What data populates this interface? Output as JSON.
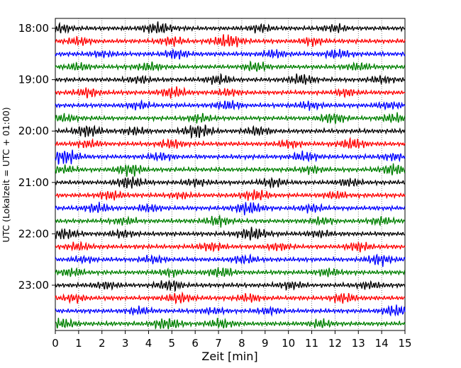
{
  "chart_data": {
    "type": "line",
    "subtype": "seismogram-helicorder",
    "title": "",
    "xlabel": "Zeit  [min]",
    "ylabel": "UTC (Lokalzeit = UTC + 01:00)",
    "xlim": [
      0,
      15
    ],
    "x_ticks": [
      "0",
      "1",
      "2",
      "3",
      "4",
      "5",
      "6",
      "7",
      "8",
      "9",
      "10",
      "11",
      "12",
      "13",
      "14",
      "15"
    ],
    "y_ticks": [
      "18:00",
      "19:00",
      "20:00",
      "21:00",
      "22:00",
      "23:00"
    ],
    "start_time": "18:00",
    "minutes_per_line": 15,
    "line_colors": [
      "#000000",
      "#ff0000",
      "#0000ff",
      "#008000"
    ],
    "grid": "vertical dotted",
    "traces": [
      {
        "start": "18:00",
        "bursts": [
          [
            4.4,
            0.7
          ],
          [
            0.2,
            0.5
          ],
          [
            8.8,
            0.4
          ],
          [
            12.0,
            0.4
          ]
        ]
      },
      {
        "start": "18:15",
        "bursts": [
          [
            7.4,
            0.8
          ],
          [
            5.0,
            0.5
          ],
          [
            11.0,
            0.4
          ],
          [
            1.0,
            0.4
          ]
        ]
      },
      {
        "start": "18:30",
        "bursts": [
          [
            5.2,
            0.5
          ],
          [
            12.1,
            0.5
          ],
          [
            9.4,
            0.4
          ],
          [
            2.0,
            0.3
          ]
        ]
      },
      {
        "start": "18:45",
        "bursts": [
          [
            4.0,
            0.5
          ],
          [
            8.6,
            0.5
          ],
          [
            1.0,
            0.4
          ],
          [
            13.0,
            0.4
          ]
        ]
      },
      {
        "start": "19:00",
        "bursts": [
          [
            10.6,
            0.6
          ],
          [
            7.0,
            0.5
          ],
          [
            3.6,
            0.4
          ],
          [
            14.0,
            0.4
          ]
        ]
      },
      {
        "start": "19:15",
        "bursts": [
          [
            5.0,
            0.6
          ],
          [
            1.4,
            0.5
          ],
          [
            7.4,
            0.4
          ],
          [
            12.5,
            0.4
          ]
        ]
      },
      {
        "start": "19:30",
        "bursts": [
          [
            7.4,
            0.5
          ],
          [
            3.6,
            0.4
          ],
          [
            10.9,
            0.4
          ],
          [
            14.3,
            0.4
          ]
        ]
      },
      {
        "start": "19:45",
        "bursts": [
          [
            11.9,
            0.6
          ],
          [
            14.5,
            0.5
          ],
          [
            0.4,
            0.4
          ],
          [
            6.2,
            0.4
          ]
        ]
      },
      {
        "start": "20:00",
        "bursts": [
          [
            6.1,
            0.8
          ],
          [
            1.4,
            0.7
          ],
          [
            8.7,
            0.5
          ],
          [
            3.4,
            0.4
          ]
        ]
      },
      {
        "start": "20:15",
        "bursts": [
          [
            12.7,
            0.6
          ],
          [
            5.0,
            0.5
          ],
          [
            1.4,
            0.4
          ],
          [
            10.0,
            0.4
          ]
        ]
      },
      {
        "start": "20:30",
        "bursts": [
          [
            0.4,
            0.9
          ],
          [
            10.7,
            0.5
          ],
          [
            4.5,
            0.4
          ],
          [
            14.5,
            0.4
          ]
        ]
      },
      {
        "start": "20:45",
        "bursts": [
          [
            3.2,
            0.7
          ],
          [
            14.5,
            0.6
          ],
          [
            0.4,
            0.4
          ],
          [
            11.0,
            0.4
          ]
        ]
      },
      {
        "start": "21:00",
        "bursts": [
          [
            3.2,
            0.7
          ],
          [
            9.3,
            0.5
          ],
          [
            12.6,
            0.4
          ],
          [
            6.0,
            0.4
          ]
        ]
      },
      {
        "start": "21:15",
        "bursts": [
          [
            8.6,
            0.6
          ],
          [
            2.4,
            0.5
          ],
          [
            12.0,
            0.4
          ],
          [
            5.4,
            0.3
          ]
        ]
      },
      {
        "start": "21:30",
        "bursts": [
          [
            8.3,
            0.7
          ],
          [
            1.8,
            0.5
          ],
          [
            11.0,
            0.4
          ],
          [
            4.0,
            0.4
          ]
        ]
      },
      {
        "start": "21:45",
        "bursts": [
          [
            7.0,
            0.5
          ],
          [
            11.4,
            0.4
          ],
          [
            3.0,
            0.4
          ],
          [
            14.0,
            0.4
          ]
        ]
      },
      {
        "start": "22:00",
        "bursts": [
          [
            8.5,
            0.8
          ],
          [
            0.4,
            0.6
          ],
          [
            2.9,
            0.4
          ],
          [
            11.3,
            0.4
          ]
        ]
      },
      {
        "start": "22:15",
        "bursts": [
          [
            6.7,
            0.5
          ],
          [
            13.0,
            0.5
          ],
          [
            1.0,
            0.4
          ],
          [
            9.6,
            0.4
          ]
        ]
      },
      {
        "start": "22:30",
        "bursts": [
          [
            13.9,
            0.6
          ],
          [
            8.1,
            0.5
          ],
          [
            4.2,
            0.4
          ],
          [
            1.2,
            0.3
          ]
        ]
      },
      {
        "start": "22:45",
        "bursts": [
          [
            7.1,
            0.6
          ],
          [
            0.7,
            0.5
          ],
          [
            11.7,
            0.4
          ],
          [
            4.9,
            0.4
          ]
        ]
      },
      {
        "start": "23:00",
        "bursts": [
          [
            4.9,
            0.6
          ],
          [
            10.1,
            0.4
          ],
          [
            2.2,
            0.4
          ],
          [
            13.5,
            0.4
          ]
        ]
      },
      {
        "start": "23:15",
        "bursts": [
          [
            5.3,
            0.6
          ],
          [
            12.4,
            0.5
          ],
          [
            8.3,
            0.4
          ],
          [
            0.8,
            0.4
          ]
        ]
      },
      {
        "start": "23:30",
        "bursts": [
          [
            14.6,
            0.6
          ],
          [
            9.2,
            0.4
          ],
          [
            3.6,
            0.4
          ],
          [
            6.8,
            0.3
          ]
        ]
      },
      {
        "start": "23:45",
        "bursts": [
          [
            4.8,
            0.7
          ],
          [
            0.3,
            0.5
          ],
          [
            7.1,
            0.5
          ],
          [
            11.4,
            0.4
          ]
        ]
      }
    ]
  }
}
